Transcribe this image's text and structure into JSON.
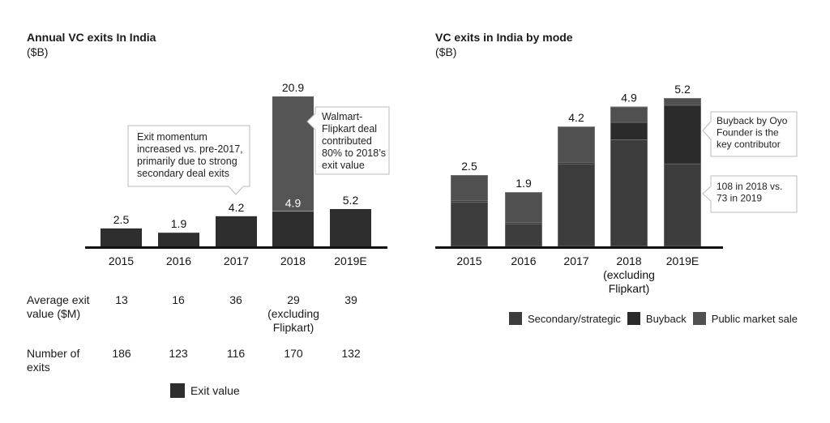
{
  "left_chart": {
    "title": "Annual VC exits In India",
    "unit": "($B)",
    "callout_momentum": [
      "Exit momentum",
      "increased vs. pre-2017,",
      "primarily due to strong",
      "secondary deal exits"
    ],
    "callout_walmart": [
      "Walmart-",
      "Flipkart deal",
      "contributed",
      "80% to 2018’s",
      "exit value"
    ],
    "table": {
      "avg_label": [
        "Average exit",
        "value ($M)"
      ],
      "avg_values": [
        [
          "13"
        ],
        [
          "16"
        ],
        [
          "36"
        ],
        [
          "29",
          "(excluding",
          "Flipkart)"
        ],
        [
          "39"
        ]
      ],
      "num_label": [
        "Number of",
        "exits"
      ],
      "num_values": [
        "186",
        "123",
        "116",
        "170",
        "132"
      ]
    },
    "legend": "Exit value"
  },
  "right_chart": {
    "title": "VC exits in India by mode",
    "unit": "($B)",
    "xlabel_2018": [
      "2018",
      "(excluding",
      "Flipkart)"
    ],
    "callout_buyback": [
      "Buyback by Oyo",
      "Founder is the",
      "key contributor"
    ],
    "callout_secondary": [
      "108 in 2018 vs.",
      "73 in 2019"
    ],
    "legend": [
      "Secondary/strategic",
      "Buyback",
      "Public market sale"
    ]
  },
  "colors": {
    "exit_value": "#2e2e2e",
    "walmart_flipkart": "#555555",
    "secondary": "#3c3c3c",
    "buyback": "#2b2b2b",
    "public": "#505050",
    "divider": "#9a9a9a",
    "axis": "#111111"
  },
  "chart_data": [
    {
      "type": "bar",
      "title": "Annual VC exits In India",
      "ylabel": "($B)",
      "xlabel": "",
      "categories": [
        "2015",
        "2016",
        "2017",
        "2018",
        "2019E"
      ],
      "series": [
        {
          "name": "Exit value",
          "values": [
            2.5,
            1.9,
            4.2,
            4.9,
            5.2
          ]
        },
        {
          "name": "Walmart-Flipkart deal",
          "values": [
            0,
            0,
            0,
            16.0,
            0
          ]
        }
      ],
      "data_labels": [
        "2.5",
        "1.9",
        "4.2",
        "4.9",
        "5.2"
      ],
      "total_labels": [
        null,
        null,
        null,
        "20.9",
        null
      ],
      "ylim": [
        0,
        22
      ],
      "grid": false,
      "legend": "bottom-center"
    },
    {
      "type": "bar",
      "stacked": true,
      "title": "VC exits in India by mode",
      "ylabel": "($B)",
      "xlabel": "",
      "categories": [
        "2015",
        "2016",
        "2017",
        "2018 (excluding Flipkart)",
        "2019E"
      ],
      "series": [
        {
          "name": "Secondary/strategic",
          "values": [
            1.55,
            0.8,
            2.9,
            3.75,
            2.9
          ]
        },
        {
          "name": "Buyback",
          "values": [
            0.05,
            0.05,
            0.05,
            0.6,
            2.05
          ]
        },
        {
          "name": "Public market sale",
          "values": [
            0.9,
            1.05,
            1.25,
            0.55,
            0.25
          ]
        }
      ],
      "total_labels": [
        "2.5",
        "1.9",
        "4.2",
        "4.9",
        "5.2"
      ],
      "ylim": [
        0,
        5.5
      ],
      "grid": false,
      "legend": "bottom-center"
    }
  ]
}
